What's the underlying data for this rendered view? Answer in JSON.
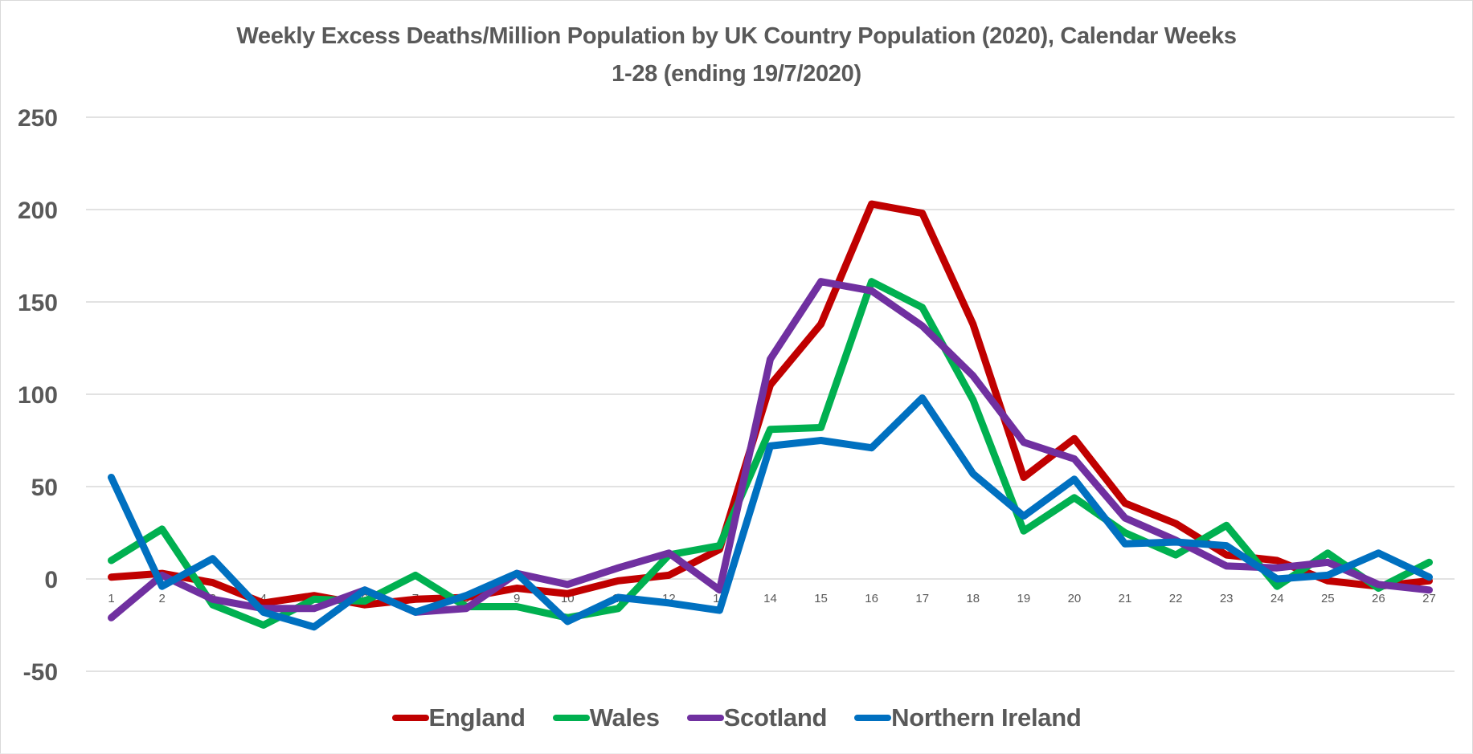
{
  "chart_data": {
    "type": "line",
    "title": "Weekly Excess Deaths/Million Population by UK Country Population (2020), Calendar Weeks 1-28 (ending 19/7/2020)",
    "title_lines": [
      "Weekly Excess Deaths/Million Population by UK Country Population (2020), Calendar Weeks",
      "1-28 (ending 19/7/2020)"
    ],
    "xlabel": "",
    "ylabel": "",
    "x": [
      "1",
      "2",
      "3",
      "4",
      "5",
      "6",
      "7",
      "8",
      "9",
      "10",
      "11",
      "12",
      "13",
      "14",
      "15",
      "16",
      "17",
      "18",
      "19",
      "20",
      "21",
      "22",
      "23",
      "24",
      "25",
      "26",
      "27"
    ],
    "ylim": [
      -50,
      250
    ],
    "yticks": [
      -50,
      0,
      50,
      100,
      150,
      200,
      250
    ],
    "grid": true,
    "legend_position": "bottom",
    "series": [
      {
        "name": "England",
        "color": "#C00000",
        "values": [
          1,
          3,
          -2,
          -13,
          -9,
          -14,
          -11,
          -10,
          -5,
          -8,
          -1,
          2,
          16,
          105,
          138,
          203,
          198,
          138,
          55,
          76,
          41,
          30,
          13,
          10,
          -1,
          -4,
          -1
        ]
      },
      {
        "name": "Wales",
        "color": "#00B050",
        "values": [
          10,
          27,
          -14,
          -25,
          -11,
          -12,
          2,
          -15,
          -15,
          -21,
          -16,
          13,
          18,
          81,
          82,
          161,
          147,
          97,
          26,
          44,
          25,
          13,
          29,
          -4,
          14,
          -5,
          9
        ]
      },
      {
        "name": "Scotland",
        "color": "#7030A0",
        "values": [
          -21,
          2,
          -11,
          -16,
          -16,
          -6,
          -18,
          -16,
          3,
          -3,
          6,
          14,
          -6,
          119,
          161,
          156,
          137,
          110,
          74,
          65,
          33,
          21,
          7,
          6,
          9,
          -3,
          -6
        ]
      },
      {
        "name": "Northern Ireland",
        "color": "#0070C0",
        "values": [
          55,
          -4,
          11,
          -18,
          -26,
          -6,
          -18,
          -9,
          3,
          -23,
          -10,
          -13,
          -17,
          72,
          75,
          71,
          98,
          57,
          34,
          54,
          19,
          20,
          18,
          0,
          2,
          14,
          1
        ]
      }
    ]
  }
}
